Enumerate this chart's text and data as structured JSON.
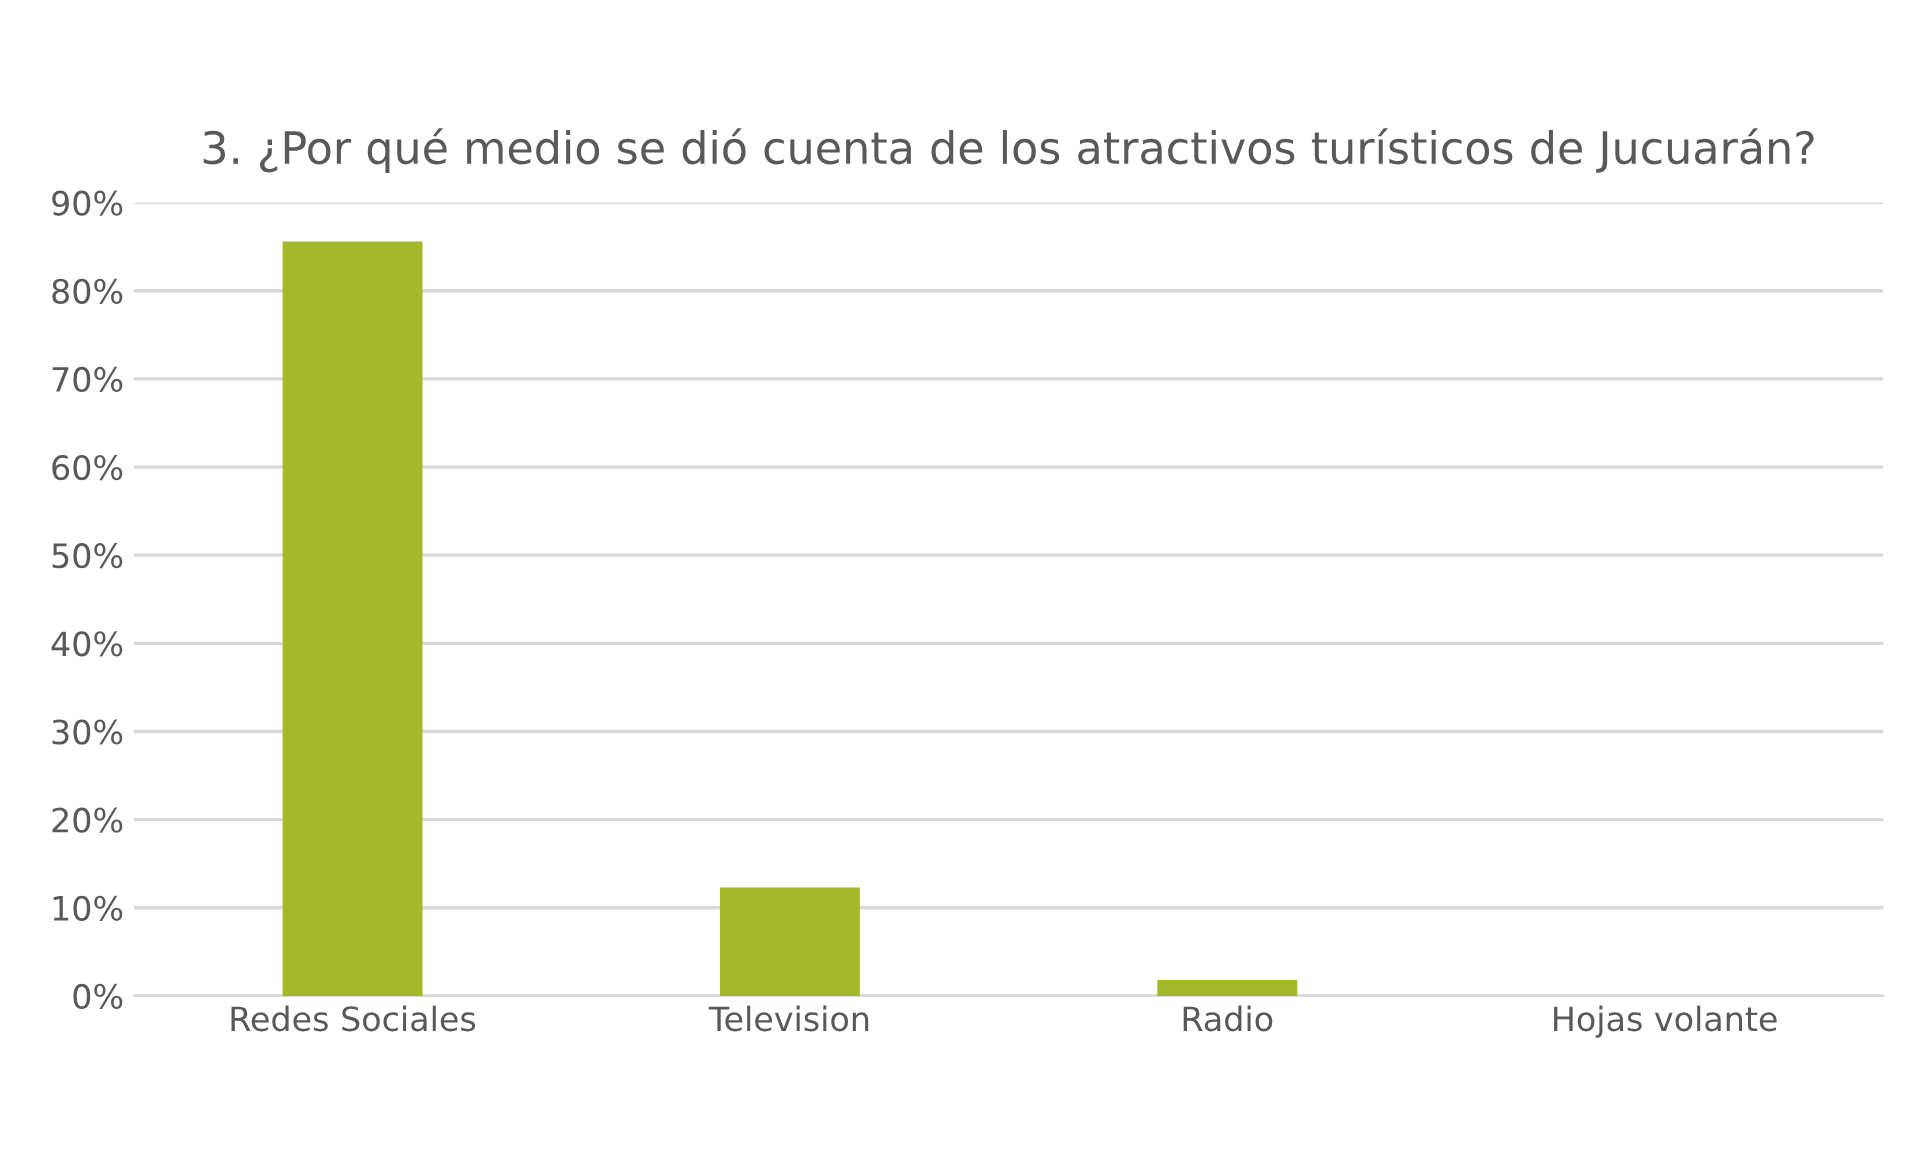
{
  "chart_data": {
    "type": "bar",
    "title": "3. ¿Por qué medio se dió cuenta de los atractivos turísticos de Jucuarán?",
    "categories": [
      "Redes Sociales",
      "Television",
      "Radio",
      "Hojas volante"
    ],
    "values": [
      85.6,
      12.3,
      1.8,
      0
    ],
    "color": "#a5b82a",
    "ylim": [
      0,
      90
    ],
    "yticks": [
      {
        "value": 0,
        "label": "0%"
      },
      {
        "value": 10,
        "label": "10%"
      },
      {
        "value": 20,
        "label": "20%"
      },
      {
        "value": 30,
        "label": "30%"
      },
      {
        "value": 40,
        "label": "40%"
      },
      {
        "value": 50,
        "label": "50%"
      },
      {
        "value": 60,
        "label": "60%"
      },
      {
        "value": 70,
        "label": "70%"
      },
      {
        "value": 80,
        "label": "80%"
      },
      {
        "value": 90,
        "label": "90%"
      }
    ],
    "grid": "y",
    "legend": false
  }
}
